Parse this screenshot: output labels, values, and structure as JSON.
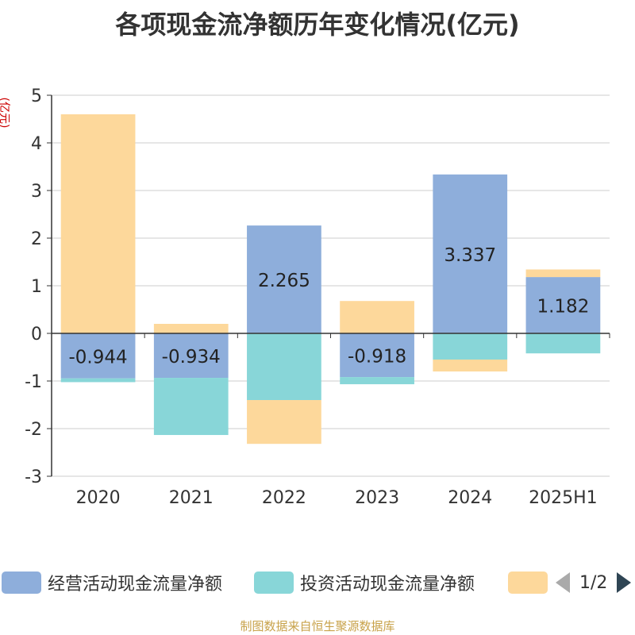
{
  "chart_data": {
    "type": "bar",
    "stacked": true,
    "title": "各项现金流净额历年变化情况(亿元)",
    "ylabel": "(亿元)",
    "categories": [
      "2020",
      "2021",
      "2022",
      "2023",
      "2024",
      "2025H1"
    ],
    "ylim": [
      -3,
      5
    ],
    "yticks": [
      5,
      4,
      3,
      2,
      1,
      0,
      -1,
      -2,
      -3
    ],
    "grid": true,
    "legend_position": "bottom",
    "series": [
      {
        "name": "经营活动现金流量净额",
        "color": "#8eaedb",
        "values": [
          -0.944,
          -0.934,
          2.265,
          -0.918,
          3.337,
          1.182
        ],
        "labels": [
          "-0.944",
          "-0.934",
          "2.265",
          "-0.918",
          "3.337",
          "1.182"
        ]
      },
      {
        "name": "投资活动现金流量净额",
        "color": "#88d6d8",
        "values": [
          -0.08,
          -1.2,
          -1.4,
          -0.15,
          -0.55,
          -0.42
        ]
      },
      {
        "name": "",
        "color": "#fdd89b",
        "values": [
          4.6,
          0.2,
          -0.92,
          0.68,
          -0.25,
          0.16
        ]
      }
    ]
  },
  "legend": {
    "page": "1/2"
  },
  "source": "制图数据来自恒生聚源数据库"
}
